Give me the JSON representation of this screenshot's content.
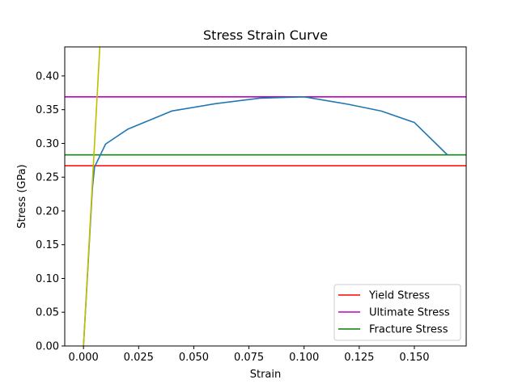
{
  "chart_data": {
    "type": "line",
    "title": "Stress Strain Curve",
    "xlabel": "Strain",
    "ylabel": "Stress (GPa)",
    "xlim": [
      -0.0085,
      0.1735
    ],
    "ylim": [
      0.0,
      0.443
    ],
    "xticks": [
      0.0,
      0.025,
      0.05,
      0.075,
      0.1,
      0.125,
      0.15
    ],
    "xtick_labels": [
      "0.000",
      "0.025",
      "0.050",
      "0.075",
      "0.100",
      "0.125",
      "0.150"
    ],
    "yticks": [
      0.0,
      0.05,
      0.1,
      0.15,
      0.2,
      0.25,
      0.3,
      0.35,
      0.4
    ],
    "ytick_labels": [
      "0.00",
      "0.05",
      "0.10",
      "0.15",
      "0.20",
      "0.25",
      "0.30",
      "0.35",
      "0.40"
    ],
    "grid": false,
    "legend_position": "bottom-right",
    "series": [
      {
        "color": "#1f77b4",
        "x": [
          0.0,
          0.004,
          0.005,
          0.01,
          0.02,
          0.04,
          0.06,
          0.08,
          0.1,
          0.12,
          0.135,
          0.15,
          0.165
        ],
        "y": [
          0.0,
          0.232,
          0.265,
          0.299,
          0.321,
          0.348,
          0.359,
          0.367,
          0.369,
          0.358,
          0.348,
          0.331,
          0.283
        ]
      },
      {
        "color": "#bfbf00",
        "x": [
          0.0,
          0.0074
        ],
        "y": [
          0.0,
          0.443
        ]
      }
    ],
    "hlines": [
      {
        "name": "Yield Stress",
        "y": 0.267,
        "color": "#ff0000"
      },
      {
        "name": "Ultimate Stress",
        "y": 0.369,
        "color": "#bf00bf"
      },
      {
        "name": "Fracture Stress",
        "y": 0.283,
        "color": "#008000"
      }
    ]
  }
}
